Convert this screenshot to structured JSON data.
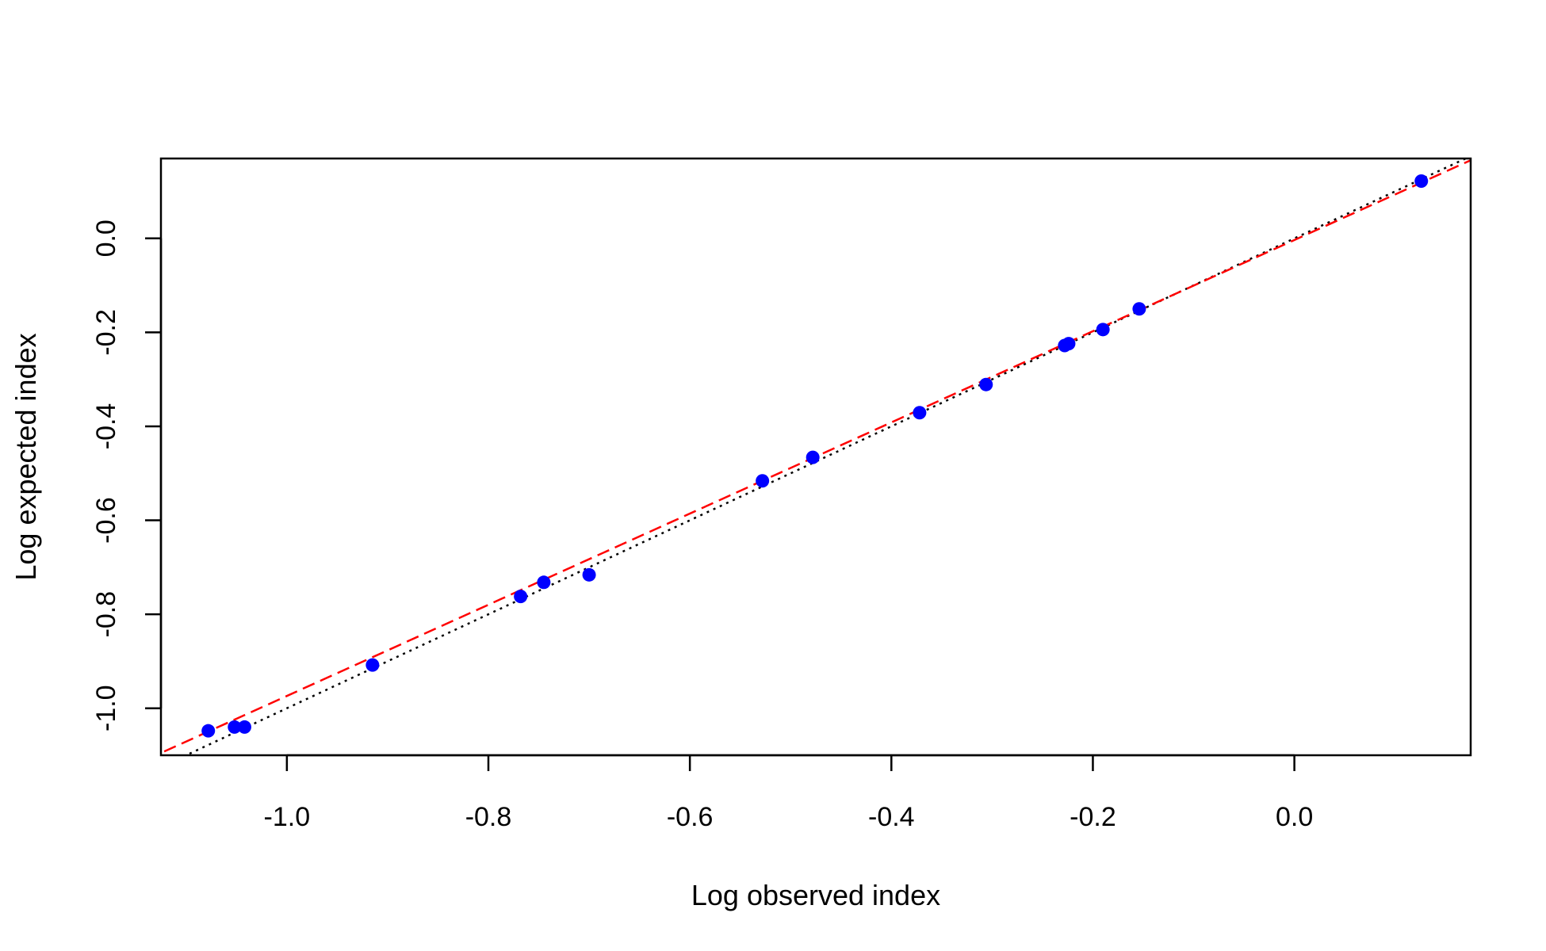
{
  "chart_data": {
    "type": "scatter",
    "title": "",
    "xlabel": "Log observed index",
    "ylabel": "Log expected index",
    "xlim": [
      -1.125,
      0.175
    ],
    "ylim": [
      -1.1,
      0.17
    ],
    "xticks": [
      -1.0,
      -0.8,
      -0.6,
      -0.4,
      -0.2,
      0.0
    ],
    "xtick_labels": [
      "-1.0",
      "-0.8",
      "-0.6",
      "-0.4",
      "-0.2",
      "0.0"
    ],
    "yticks": [
      -1.0,
      -0.8,
      -0.6,
      -0.4,
      -0.2,
      0.0
    ],
    "ytick_labels": [
      "-1.0",
      "-0.8",
      "-0.6",
      "-0.4",
      "-0.2",
      "0.0"
    ],
    "grid": false,
    "legend": "none",
    "points": {
      "color": "#0000ff",
      "x": [
        -1.078,
        -1.052,
        -1.042,
        -0.915,
        -0.768,
        -0.745,
        -0.7,
        -0.528,
        -0.478,
        -0.372,
        -0.306,
        -0.228,
        -0.224,
        -0.19,
        -0.154,
        0.126
      ],
      "y": [
        -1.048,
        -1.04,
        -1.04,
        -0.908,
        -0.762,
        -0.732,
        -0.716,
        -0.516,
        -0.466,
        -0.371,
        -0.311,
        -0.228,
        -0.224,
        -0.194,
        -0.15,
        0.122
      ]
    },
    "reference_lines": [
      {
        "style": "dotted",
        "color": "#000000",
        "intercept": 0.0,
        "slope": 1.0
      },
      {
        "style": "dashed",
        "color": "#ff0000",
        "intercept": -0.0035,
        "slope": 0.9703
      }
    ]
  }
}
